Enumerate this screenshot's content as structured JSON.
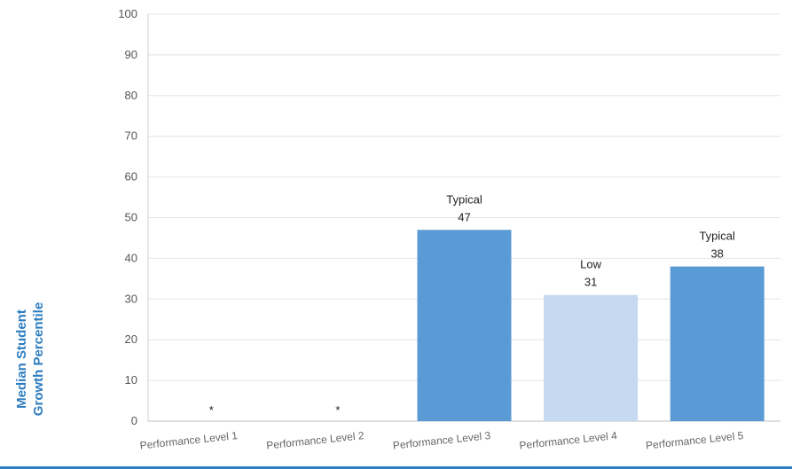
{
  "chart_data": {
    "type": "bar",
    "categories": [
      "Performance Level 1",
      "Performance Level 2",
      "Performance Level 3",
      "Performance Level 4",
      "Performance Level 5"
    ],
    "values": [
      null,
      null,
      47,
      31,
      38
    ],
    "value_labels": [
      "*",
      "*",
      "47",
      "31",
      "38"
    ],
    "growth_labels": [
      "",
      "",
      "Typical",
      "Low",
      "Typical"
    ],
    "bar_colors": [
      "#5b9bd5",
      "#5b9bd5",
      "#5b9bd5",
      "#c5daf0",
      "#5b9bd5"
    ],
    "ylabel_lines": [
      "Median Student",
      "Growth Percentile"
    ],
    "ylim": [
      0,
      100
    ],
    "yticks": [
      0,
      10,
      20,
      30,
      40,
      50,
      60,
      70,
      80,
      90,
      100
    ],
    "grid": true
  },
  "colors": {
    "bar_typical": "#5b9bd5",
    "bar_low": "#c5daf0",
    "axis_title": "#2e7dc1"
  }
}
